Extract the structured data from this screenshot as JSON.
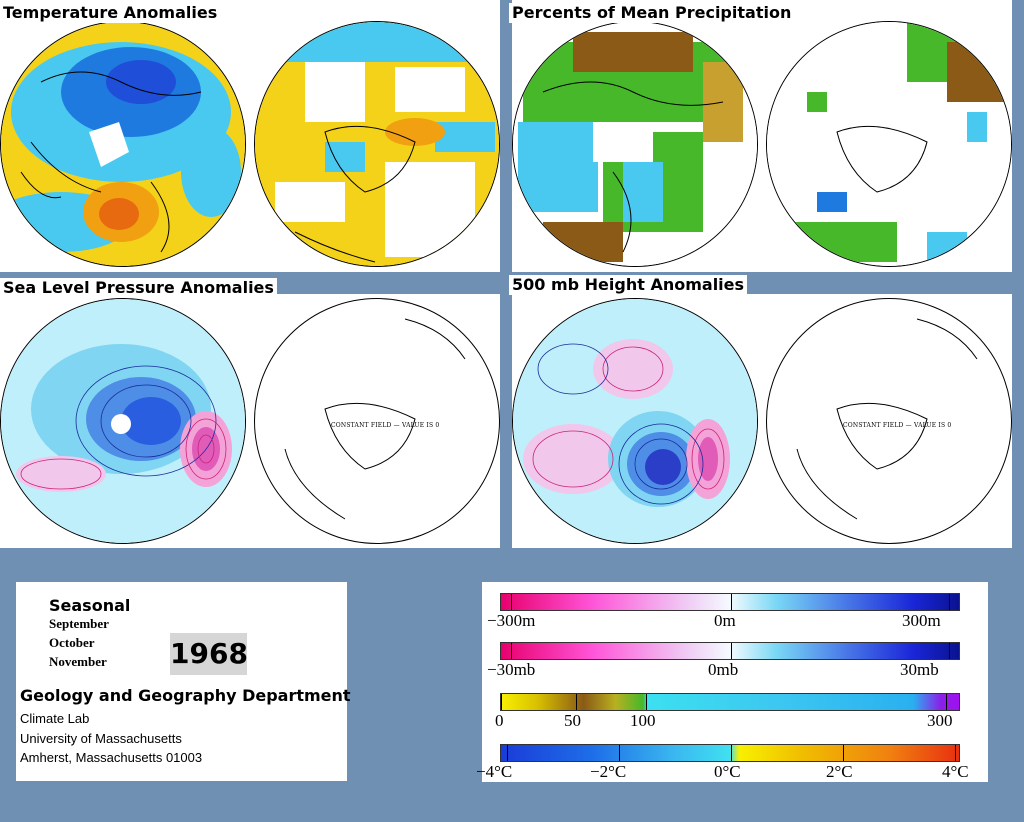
{
  "panels": {
    "temperature": {
      "title": "Temperature Anomalies"
    },
    "precipitation": {
      "title": "Percents of Mean Precipitation"
    },
    "sea_level_pressure": {
      "title": "Sea Level Pressure Anomalies",
      "southern_note": "CONSTANT FIELD — VALUE IS 0"
    },
    "height_500mb": {
      "title": "500 mb Height Anomalies",
      "southern_note": "CONSTANT FIELD — VALUE IS 0"
    }
  },
  "info": {
    "period_label": "Seasonal",
    "months": [
      "September",
      "October",
      "November"
    ],
    "year": "1968",
    "department": "Geology and Geography Department",
    "address_lines": [
      "Climate Lab",
      "University of Massachusetts",
      "Amherst, Massachusetts 01003"
    ]
  },
  "legend": {
    "height_scale": {
      "min": "−300m",
      "mid": "0m",
      "max": "300m"
    },
    "pressure_scale": {
      "min": "−30mb",
      "mid": "0mb",
      "max": "30mb"
    },
    "precip_scale": {
      "t0": "0",
      "t1": "50",
      "t2": "100",
      "t3": "300"
    },
    "temp_scale": {
      "t0": "−4°C",
      "t1": "−2°C",
      "t2": "0°C",
      "t3": "2°C",
      "t4": "4°C"
    }
  },
  "colors": {
    "background": "#6f8fb3",
    "cold": "#1f4fd8",
    "cool": "#3cc8f0",
    "warm": "#f4d21a",
    "hot": "#e86a10",
    "precip_dry": "#8a5a16",
    "precip_wet": "#46b82a",
    "neg_contour": "#cc2277",
    "pos_contour": "#1a2a9a"
  }
}
